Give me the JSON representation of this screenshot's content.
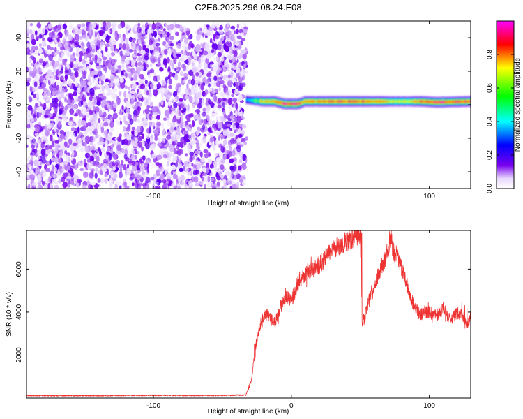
{
  "title": "C2E6.2025.296.08.24.E08",
  "chart_data": [
    {
      "type": "heatmap",
      "xlabel": "Height of straight line (km)",
      "ylabel": "Frequency (Hz)",
      "xlim": [
        -192,
        130
      ],
      "ylim": [
        -50,
        50
      ],
      "xticks": [
        -100,
        0,
        100
      ],
      "xtick_labels": [
        "-100",
        "",
        "100"
      ],
      "yticks": [
        -40,
        -20,
        0,
        20,
        40
      ],
      "ytick_labels": [
        "-40",
        "-20",
        "0",
        "20",
        "40"
      ],
      "noise_region": {
        "x_range": [
          -192,
          -33
        ],
        "y_range": [
          -50,
          48
        ]
      },
      "signal_band": [
        {
          "x": -33,
          "center": 3,
          "amplitude": 0.3
        },
        {
          "x": -28,
          "center": 2.5,
          "amplitude": 0.5
        },
        {
          "x": -20,
          "center": 2,
          "amplitude": 0.8
        },
        {
          "x": -12,
          "center": 2,
          "amplitude": 0.85
        },
        {
          "x": -5,
          "center": 0.5,
          "amplitude": 0.95
        },
        {
          "x": 5,
          "center": 0.5,
          "amplitude": 0.95
        },
        {
          "x": 10,
          "center": 2,
          "amplitude": 0.8
        },
        {
          "x": 30,
          "center": 2,
          "amplitude": 0.9
        },
        {
          "x": 60,
          "center": 2,
          "amplitude": 0.85
        },
        {
          "x": 85,
          "center": 2,
          "amplitude": 0.7
        },
        {
          "x": 95,
          "center": 2,
          "amplitude": 0.9
        },
        {
          "x": 105,
          "center": 1.5,
          "amplitude": 0.95
        },
        {
          "x": 130,
          "center": 2,
          "amplitude": 0.9
        }
      ],
      "colorbar": {
        "label": "Normalized spectral amplitude",
        "range": [
          0,
          1
        ],
        "ticks": [
          0.0,
          0.2,
          0.4,
          0.6,
          0.8
        ],
        "tick_labels": [
          "0.0",
          "0.2",
          "0.4",
          "0.6",
          "0.8"
        ],
        "colors": [
          "#ffffff",
          "#7700ee",
          "#0000ff",
          "#00ffff",
          "#00ff00",
          "#ffff00",
          "#ff0000",
          "#ff00ff"
        ]
      }
    },
    {
      "type": "line",
      "xlabel": "Height of straight line (km)",
      "ylabel": "SNR (10 * v/v)",
      "xlim": [
        -192,
        130
      ],
      "ylim": [
        0,
        7800
      ],
      "xticks": [
        -100,
        0,
        100
      ],
      "xtick_labels": [
        "-100",
        "0",
        "100"
      ],
      "yticks": [
        2000,
        4000,
        6000
      ],
      "ytick_labels": [
        "2000",
        "4000",
        "6000"
      ],
      "color": "#ee3333",
      "series": [
        {
          "x": [
            -192,
            -150,
            -100,
            -60,
            -33,
            -29,
            -26,
            -22,
            -18,
            -12,
            -8,
            -4,
            0,
            5,
            10,
            20,
            30,
            40,
            45,
            50,
            51,
            53,
            57,
            62,
            67,
            70,
            72,
            74,
            78,
            83,
            88,
            93,
            100,
            105,
            110,
            115,
            120,
            125,
            128,
            130
          ],
          "y": [
            120,
            110,
            130,
            120,
            140,
            800,
            2400,
            3600,
            3900,
            3500,
            4200,
            4700,
            4500,
            5400,
            5800,
            6200,
            6900,
            7300,
            7500,
            7700,
            3600,
            3700,
            4700,
            5600,
            6300,
            6900,
            7500,
            6800,
            6500,
            5400,
            4400,
            3900,
            4000,
            3800,
            4200,
            3600,
            4000,
            3800,
            3400,
            4000
          ]
        }
      ]
    }
  ]
}
